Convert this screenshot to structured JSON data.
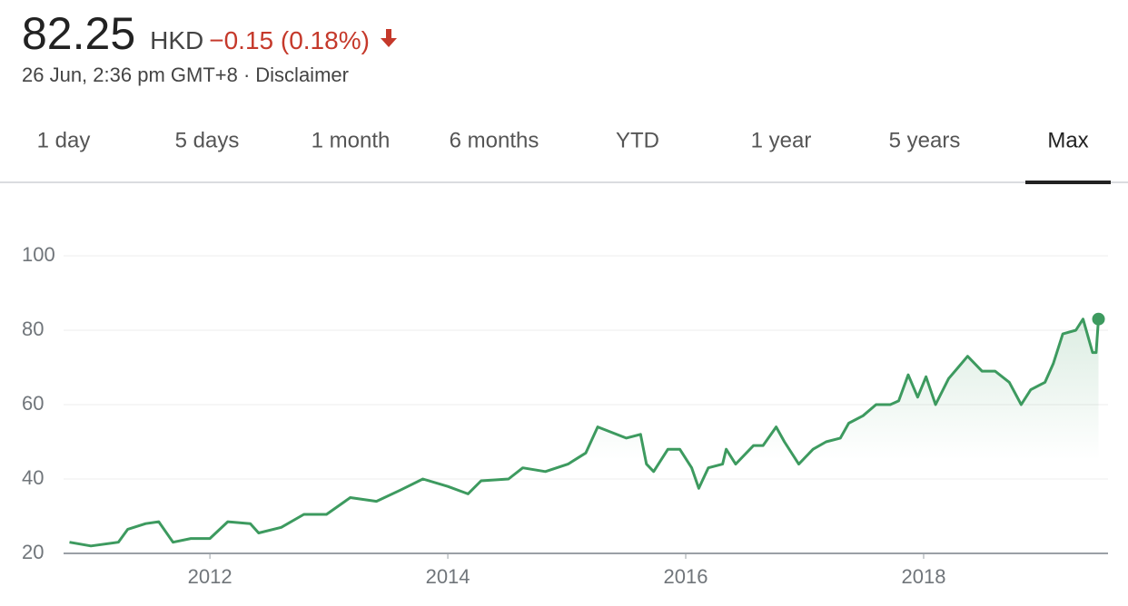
{
  "header": {
    "price": "82.25",
    "currency": "HKD",
    "change": "−0.15 (0.18%)",
    "timestamp": "26 Jun, 2:36 pm GMT+8 ·",
    "disclaimer": "Disclaimer"
  },
  "tabs": [
    "1 day",
    "5 days",
    "1 month",
    "6 months",
    "YTD",
    "1 year",
    "5 years",
    "Max"
  ],
  "selected_tab_index": 7,
  "chart_data": {
    "type": "line",
    "color": "#3d9a5f",
    "x": [
      2010.82,
      2011.0,
      2011.23,
      2011.31,
      2011.46,
      2011.57,
      2011.69,
      2011.84,
      2012.0,
      2012.15,
      2012.34,
      2012.41,
      2012.6,
      2012.79,
      2012.98,
      2013.18,
      2013.4,
      2013.6,
      2013.79,
      2014.0,
      2014.17,
      2014.28,
      2014.51,
      2014.63,
      2014.82,
      2015.01,
      2015.16,
      2015.26,
      2015.5,
      2015.62,
      2015.67,
      2015.73,
      2015.85,
      2015.95,
      2016.05,
      2016.11,
      2016.19,
      2016.31,
      2016.34,
      2016.42,
      2016.57,
      2016.65,
      2016.76,
      2016.83,
      2016.95,
      2017.07,
      2017.18,
      2017.3,
      2017.37,
      2017.49,
      2017.6,
      2017.72,
      2017.79,
      2017.87,
      2017.95,
      2018.02,
      2018.1,
      2018.21,
      2018.29,
      2018.37,
      2018.49,
      2018.6,
      2018.72,
      2018.82,
      2018.9,
      2019.02,
      2019.09,
      2019.17,
      2019.28,
      2019.34,
      2019.42,
      2019.45,
      2019.47
    ],
    "values": [
      23,
      22,
      23,
      26.5,
      28,
      28.5,
      23,
      24,
      24,
      28.5,
      28,
      25.5,
      27,
      30.5,
      30.5,
      35,
      34,
      37,
      40,
      38,
      36,
      39.5,
      40,
      43,
      42,
      44,
      47,
      54,
      51,
      52,
      44,
      42,
      48,
      48,
      43,
      37.5,
      43,
      44,
      48,
      44,
      49,
      49,
      54,
      50,
      44,
      48,
      50,
      51,
      55,
      57,
      60,
      60,
      61,
      68,
      62,
      67.5,
      60,
      67,
      70,
      73,
      69,
      69,
      66,
      60,
      64,
      66,
      71,
      79,
      80,
      83,
      74,
      74,
      83
    ],
    "xlim": [
      2010.77,
      2019.55
    ],
    "xticks": [
      2012,
      2014,
      2016,
      2018
    ],
    "ylim": [
      20,
      100
    ],
    "yticks": [
      20,
      40,
      60,
      80,
      100
    ],
    "grid": true
  }
}
